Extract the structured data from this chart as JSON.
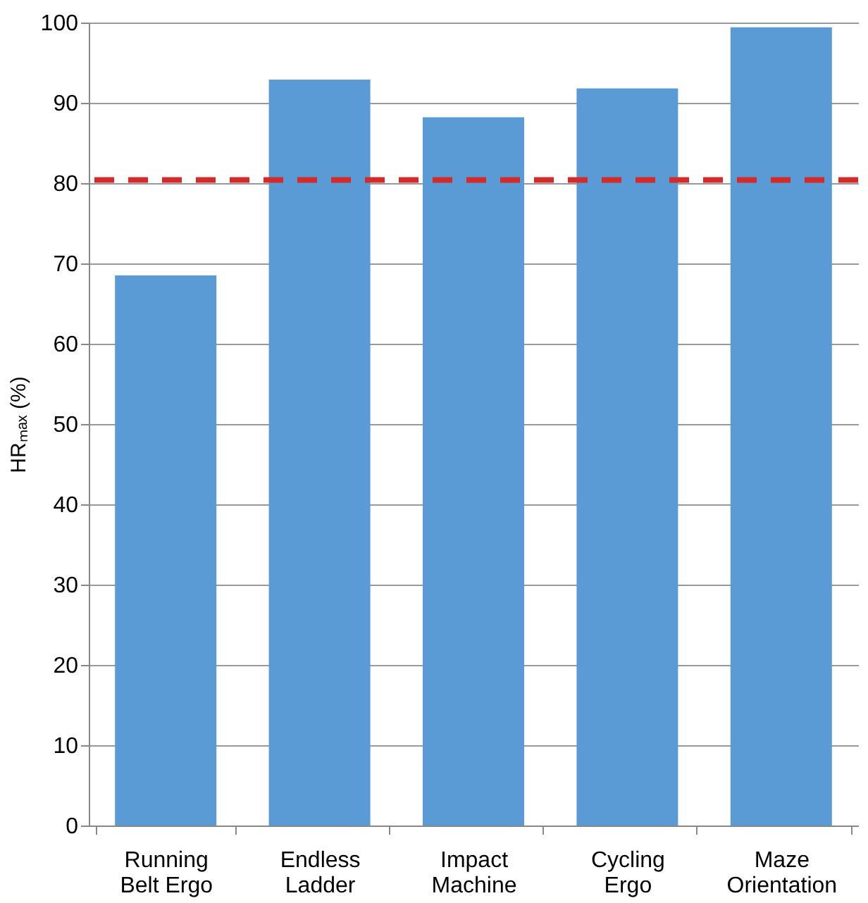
{
  "chart_data": {
    "type": "bar",
    "ylabel": "HRₘₐₓ (%)",
    "categories": [
      "Running Belt Ergo",
      "Endless Ladder",
      "Impact Machine",
      "Cycling Ergo",
      "Maze Orientation"
    ],
    "values": [
      68.5,
      92.9,
      88.2,
      91.8,
      99.4
    ],
    "color": "#5b9bd5",
    "ylim": [
      0,
      100
    ],
    "yticks": [
      0,
      10,
      20,
      30,
      40,
      50,
      60,
      70,
      80,
      90,
      100
    ],
    "grid": "y",
    "ref_lines": [
      {
        "axis": "y",
        "value": 80.4,
        "label": null,
        "color": "#d42a2a",
        "line_style": "dashed"
      }
    ]
  }
}
